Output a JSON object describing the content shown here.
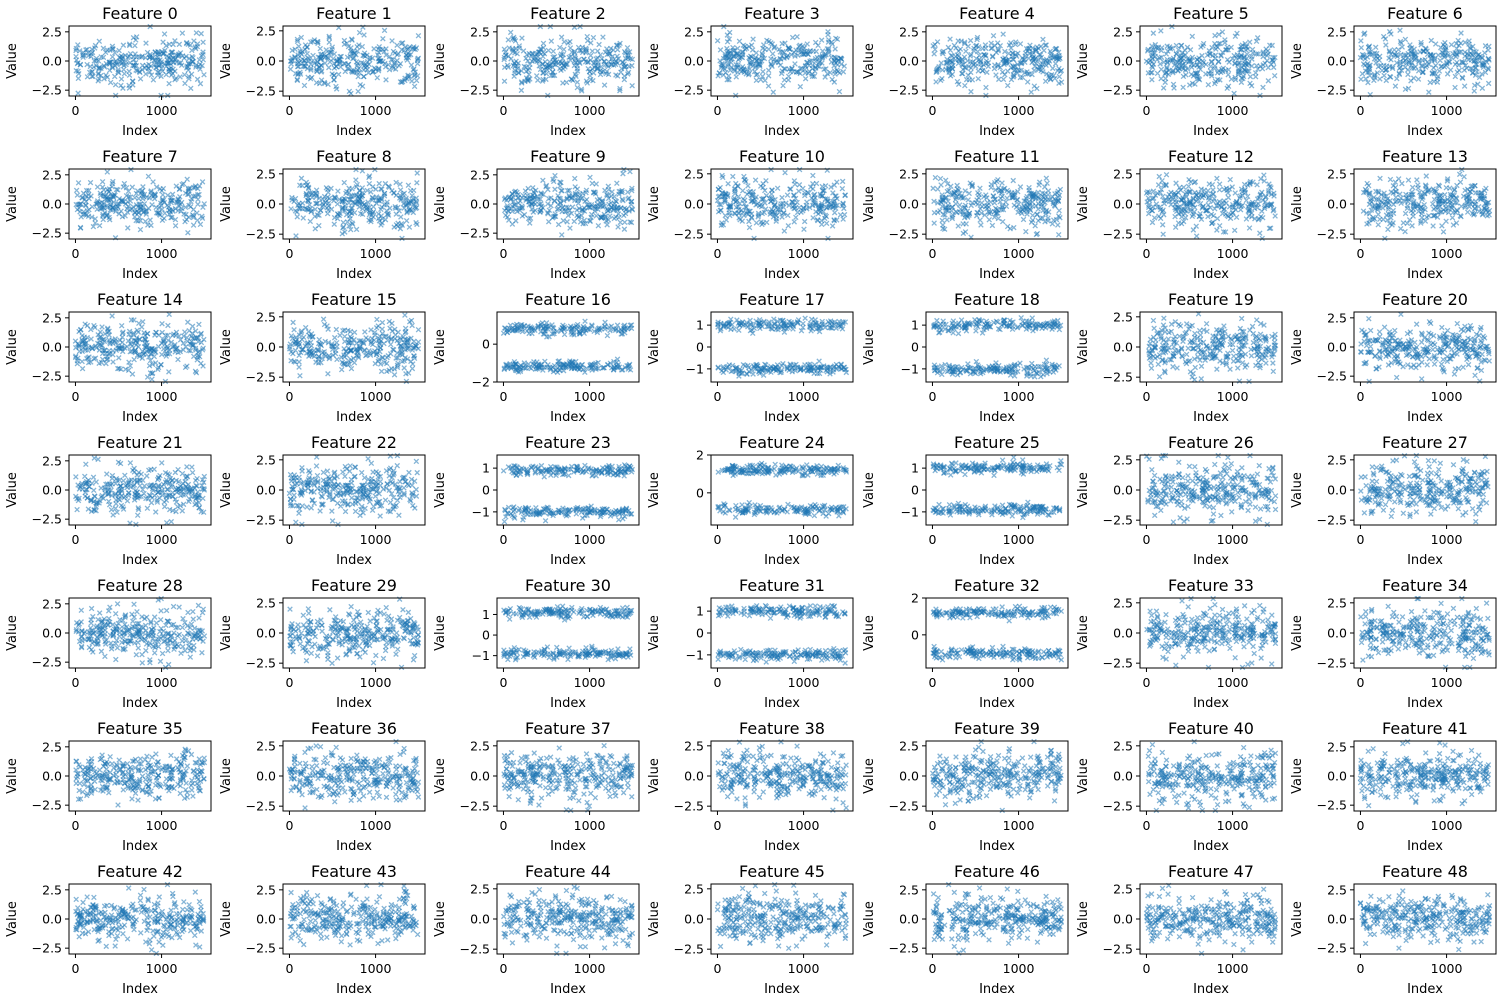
{
  "chart_data": {
    "type": "scatter",
    "layout": {
      "rows": 7,
      "cols": 7
    },
    "marker": "x",
    "color": "#1f77b4",
    "alpha": 0.5,
    "xlabel": "Index",
    "ylabel": "Value",
    "x_range": [
      0,
      1499
    ],
    "xlim": [
      -75,
      1574
    ],
    "xticks": [
      0,
      1000
    ],
    "panels": [
      {
        "title": "Feature 0",
        "kind": "normal",
        "ylim": [
          -3.0,
          3.0
        ],
        "yticks": [
          -2.5,
          0.0,
          2.5
        ]
      },
      {
        "title": "Feature 1",
        "kind": "normal",
        "ylim": [
          -2.9,
          2.9
        ],
        "yticks": [
          -2.5,
          0.0,
          2.5
        ]
      },
      {
        "title": "Feature 2",
        "kind": "normal",
        "ylim": [
          -3.0,
          3.0
        ],
        "yticks": [
          -2.5,
          0.0,
          2.5
        ]
      },
      {
        "title": "Feature 3",
        "kind": "normal",
        "ylim": [
          -3.0,
          3.0
        ],
        "yticks": [
          -2.5,
          0.0,
          2.5
        ]
      },
      {
        "title": "Feature 4",
        "kind": "normal",
        "ylim": [
          -3.0,
          3.0
        ],
        "yticks": [
          -2.5,
          0.0,
          2.5
        ]
      },
      {
        "title": "Feature 5",
        "kind": "normal",
        "ylim": [
          -3.0,
          3.0
        ],
        "yticks": [
          -2.5,
          0.0,
          2.5
        ]
      },
      {
        "title": "Feature 6",
        "kind": "normal",
        "ylim": [
          -3.0,
          3.0
        ],
        "yticks": [
          -2.5,
          0.0,
          2.5
        ]
      },
      {
        "title": "Feature 7",
        "kind": "normal",
        "ylim": [
          -3.0,
          3.0
        ],
        "yticks": [
          -2.5,
          0.0,
          2.5
        ]
      },
      {
        "title": "Feature 8",
        "kind": "normal",
        "ylim": [
          -2.9,
          2.9
        ],
        "yticks": [
          -2.5,
          0.0,
          2.5
        ]
      },
      {
        "title": "Feature 9",
        "kind": "normal",
        "ylim": [
          -3.0,
          3.0
        ],
        "yticks": [
          -2.5,
          0.0,
          2.5
        ]
      },
      {
        "title": "Feature 10",
        "kind": "normal",
        "ylim": [
          -2.9,
          2.9
        ],
        "yticks": [
          -2.5,
          0.0,
          2.5
        ]
      },
      {
        "title": "Feature 11",
        "kind": "normal",
        "ylim": [
          -2.9,
          2.9
        ],
        "yticks": [
          -2.5,
          0.0,
          2.5
        ]
      },
      {
        "title": "Feature 12",
        "kind": "normal",
        "ylim": [
          -2.9,
          2.9
        ],
        "yticks": [
          -2.5,
          0.0,
          2.5
        ]
      },
      {
        "title": "Feature 13",
        "kind": "normal",
        "ylim": [
          -2.9,
          2.9
        ],
        "yticks": [
          -2.5,
          0.0,
          2.5
        ]
      },
      {
        "title": "Feature 14",
        "kind": "normal",
        "ylim": [
          -3.0,
          3.0
        ],
        "yticks": [
          -2.5,
          0.0,
          2.5
        ]
      },
      {
        "title": "Feature 15",
        "kind": "normal",
        "ylim": [
          -2.9,
          2.9
        ],
        "yticks": [
          -2.5,
          0.0,
          2.5
        ]
      },
      {
        "title": "Feature 16",
        "kind": "bimodal",
        "ylim": [
          -2.0,
          1.7
        ],
        "yticks": [
          -2,
          0
        ],
        "centers": [
          -1.2,
          0.8
        ],
        "spread": 0.15
      },
      {
        "title": "Feature 17",
        "kind": "bimodal",
        "ylim": [
          -1.6,
          1.6
        ],
        "yticks": [
          -1,
          0,
          1
        ],
        "centers": [
          -1.0,
          1.0
        ],
        "spread": 0.13
      },
      {
        "title": "Feature 18",
        "kind": "bimodal",
        "ylim": [
          -1.6,
          1.6
        ],
        "yticks": [
          -1,
          0,
          1
        ],
        "centers": [
          -1.0,
          1.0
        ],
        "spread": 0.13
      },
      {
        "title": "Feature 19",
        "kind": "normal",
        "ylim": [
          -2.9,
          2.9
        ],
        "yticks": [
          -2.5,
          0.0,
          2.5
        ]
      },
      {
        "title": "Feature 20",
        "kind": "normal",
        "ylim": [
          -3.0,
          3.0
        ],
        "yticks": [
          -2.5,
          0.0,
          2.5
        ]
      },
      {
        "title": "Feature 21",
        "kind": "normal",
        "ylim": [
          -3.0,
          3.0
        ],
        "yticks": [
          -2.5,
          0.0,
          2.5
        ]
      },
      {
        "title": "Feature 22",
        "kind": "normal",
        "ylim": [
          -2.9,
          2.9
        ],
        "yticks": [
          -2.5,
          0.0,
          2.5
        ]
      },
      {
        "title": "Feature 23",
        "kind": "bimodal",
        "ylim": [
          -1.6,
          1.6
        ],
        "yticks": [
          -1,
          0,
          1
        ],
        "centers": [
          -1.0,
          0.9
        ],
        "spread": 0.13
      },
      {
        "title": "Feature 24",
        "kind": "bimodal",
        "ylim": [
          -1.7,
          2.0
        ],
        "yticks": [
          0,
          2
        ],
        "centers": [
          -0.9,
          1.2
        ],
        "spread": 0.15
      },
      {
        "title": "Feature 25",
        "kind": "bimodal",
        "ylim": [
          -1.6,
          1.6
        ],
        "yticks": [
          -1,
          0,
          1
        ],
        "centers": [
          -0.9,
          1.0
        ],
        "spread": 0.13
      },
      {
        "title": "Feature 26",
        "kind": "normal",
        "ylim": [
          -2.9,
          2.9
        ],
        "yticks": [
          -2.5,
          0.0,
          2.5
        ]
      },
      {
        "title": "Feature 27",
        "kind": "normal",
        "ylim": [
          -2.9,
          2.9
        ],
        "yticks": [
          -2.5,
          0.0,
          2.5
        ]
      },
      {
        "title": "Feature 28",
        "kind": "normal",
        "ylim": [
          -3.0,
          3.0
        ],
        "yticks": [
          -2.5,
          0.0,
          2.5
        ]
      },
      {
        "title": "Feature 29",
        "kind": "normal",
        "ylim": [
          -2.9,
          2.9
        ],
        "yticks": [
          -2.5,
          0.0,
          2.5
        ]
      },
      {
        "title": "Feature 30",
        "kind": "bimodal",
        "ylim": [
          -1.6,
          1.8
        ],
        "yticks": [
          -1,
          0,
          1
        ],
        "centers": [
          -0.9,
          1.1
        ],
        "spread": 0.13
      },
      {
        "title": "Feature 31",
        "kind": "bimodal",
        "ylim": [
          -1.6,
          1.6
        ],
        "yticks": [
          -1,
          0,
          1
        ],
        "centers": [
          -1.0,
          1.0
        ],
        "spread": 0.13
      },
      {
        "title": "Feature 32",
        "kind": "bimodal",
        "ylim": [
          -1.8,
          2.0
        ],
        "yticks": [
          0,
          2
        ],
        "centers": [
          -1.0,
          1.2
        ],
        "spread": 0.15
      },
      {
        "title": "Feature 33",
        "kind": "normal",
        "ylim": [
          -2.9,
          2.9
        ],
        "yticks": [
          -2.5,
          0.0,
          2.5
        ]
      },
      {
        "title": "Feature 34",
        "kind": "normal",
        "ylim": [
          -2.9,
          2.9
        ],
        "yticks": [
          -2.5,
          0.0,
          2.5
        ]
      },
      {
        "title": "Feature 35",
        "kind": "normal",
        "ylim": [
          -3.0,
          3.0
        ],
        "yticks": [
          -2.5,
          0.0,
          2.5
        ]
      },
      {
        "title": "Feature 36",
        "kind": "normal",
        "ylim": [
          -2.9,
          2.9
        ],
        "yticks": [
          -2.5,
          0.0,
          2.5
        ]
      },
      {
        "title": "Feature 37",
        "kind": "normal",
        "ylim": [
          -2.9,
          2.9
        ],
        "yticks": [
          -2.5,
          0.0,
          2.5
        ]
      },
      {
        "title": "Feature 38",
        "kind": "normal",
        "ylim": [
          -2.9,
          2.9
        ],
        "yticks": [
          -2.5,
          0.0,
          2.5
        ]
      },
      {
        "title": "Feature 39",
        "kind": "normal",
        "ylim": [
          -2.9,
          2.9
        ],
        "yticks": [
          -2.5,
          0.0,
          2.5
        ]
      },
      {
        "title": "Feature 40",
        "kind": "normal",
        "ylim": [
          -2.9,
          2.9
        ],
        "yticks": [
          -2.5,
          0.0,
          2.5
        ]
      },
      {
        "title": "Feature 41",
        "kind": "normal",
        "ylim": [
          -3.0,
          3.0
        ],
        "yticks": [
          -2.5,
          0.0,
          2.5
        ]
      },
      {
        "title": "Feature 42",
        "kind": "normal",
        "ylim": [
          -3.0,
          3.0
        ],
        "yticks": [
          -2.5,
          0.0,
          2.5
        ]
      },
      {
        "title": "Feature 43",
        "kind": "normal",
        "ylim": [
          -3.0,
          3.0
        ],
        "yticks": [
          -2.5,
          0.0,
          2.5
        ]
      },
      {
        "title": "Feature 44",
        "kind": "normal",
        "ylim": [
          -2.9,
          2.9
        ],
        "yticks": [
          -2.5,
          0.0,
          2.5
        ]
      },
      {
        "title": "Feature 45",
        "kind": "normal",
        "ylim": [
          -2.9,
          2.9
        ],
        "yticks": [
          -2.5,
          0.0,
          2.5
        ]
      },
      {
        "title": "Feature 46",
        "kind": "normal",
        "ylim": [
          -3.0,
          3.0
        ],
        "yticks": [
          -2.5,
          0.0,
          2.5
        ]
      },
      {
        "title": "Feature 47",
        "kind": "normal",
        "ylim": [
          -2.9,
          2.9
        ],
        "yticks": [
          -2.5,
          0.0,
          2.5
        ]
      },
      {
        "title": "Feature 48",
        "kind": "normal",
        "ylim": [
          -3.0,
          3.0
        ],
        "yticks": [
          -2.5,
          0.0,
          2.5
        ]
      }
    ]
  }
}
